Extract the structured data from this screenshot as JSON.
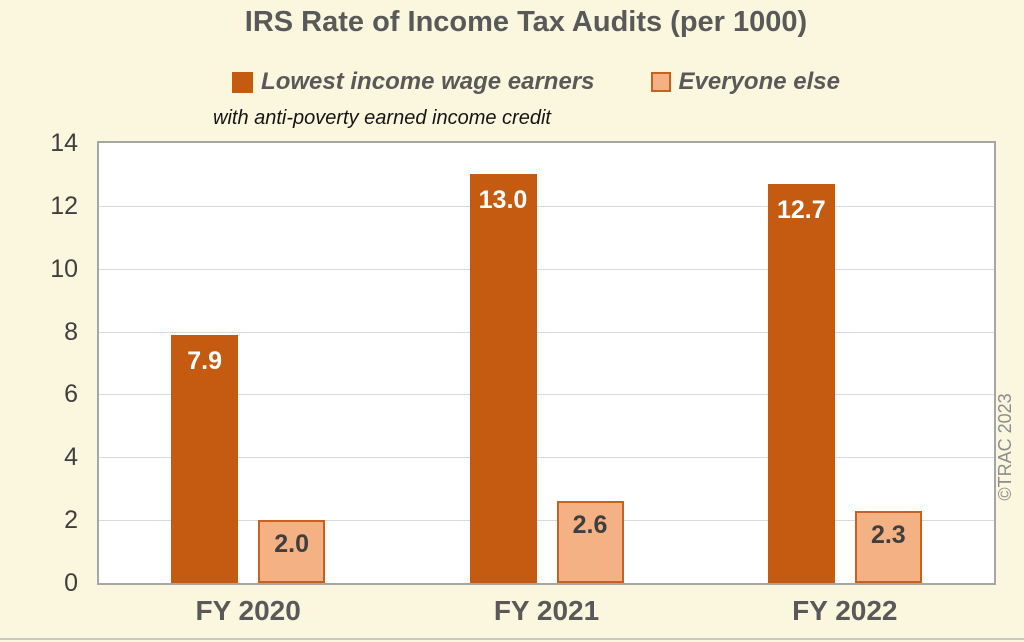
{
  "chart_data": {
    "type": "bar",
    "title": "IRS Rate of Income Tax Audits (per 1000)",
    "categories": [
      "FY 2020",
      "FY 2021",
      "FY 2022"
    ],
    "series": [
      {
        "name": "Lowest income wage earners",
        "note": "with anti-poverty earned income credit",
        "values": [
          7.9,
          13.0,
          12.7
        ],
        "labels": [
          "7.9",
          "13.0",
          "12.7"
        ]
      },
      {
        "name": "Everyone else",
        "values": [
          2.0,
          2.6,
          2.3
        ],
        "labels": [
          "2.0",
          "2.6",
          "2.3"
        ]
      }
    ],
    "xlabel": "",
    "ylabel": "",
    "ylim": [
      0,
      14
    ],
    "yticks": [
      0,
      2,
      4,
      6,
      8,
      10,
      12,
      14
    ],
    "grid": "horizontal",
    "legend_position": "top",
    "annotations": [
      "©TRAC 2023"
    ]
  },
  "colors": {
    "background": "#FBF7DE",
    "dark_bar": "#C55A11",
    "light_bar_fill": "#F4B183",
    "light_bar_border": "#C9601D",
    "heading_text": "#595959",
    "axis_text": "#3F3F3F",
    "gridline": "#D9D9D9",
    "plot_border": "#A6A6A6",
    "watermark_text": "#8C8C8C"
  }
}
